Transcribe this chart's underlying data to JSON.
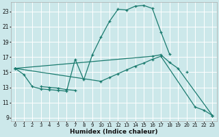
{
  "xlabel": "Humidex (Indice chaleur)",
  "bg_color": "#cce8ea",
  "grid_color": "#ffffff",
  "line_color": "#1a7a6e",
  "xlim": [
    -0.5,
    23.5
  ],
  "ylim": [
    8.5,
    24.2
  ],
  "xticks": [
    0,
    1,
    2,
    3,
    4,
    5,
    6,
    7,
    8,
    9,
    10,
    11,
    12,
    13,
    14,
    15,
    16,
    17,
    18,
    19,
    20,
    21,
    22,
    23
  ],
  "yticks": [
    9,
    11,
    13,
    15,
    17,
    19,
    21,
    23
  ],
  "lines": [
    {
      "segments": [
        {
          "x": [
            0,
            1,
            2,
            3,
            4,
            5,
            6,
            7,
            8,
            9,
            10,
            11,
            12,
            13,
            14,
            15,
            16,
            17,
            18
          ],
          "y": [
            15.5,
            14.7,
            13.1,
            12.8,
            12.7,
            12.6,
            12.5,
            16.7,
            14.0,
            17.3,
            19.6,
            21.7,
            23.3,
            23.2,
            23.7,
            23.8,
            23.4,
            20.3,
            17.4
          ]
        }
      ]
    },
    {
      "segments": [
        {
          "x": [
            0,
            1,
            2,
            3,
            4,
            5,
            6,
            7,
            8,
            9,
            10,
            11,
            12,
            13,
            14,
            15,
            16,
            17,
            18,
            19,
            20,
            21,
            22,
            23
          ],
          "y": [
            15.5,
            null,
            null,
            13.1,
            13.0,
            12.9,
            12.7,
            12.6,
            null,
            null,
            null,
            null,
            null,
            null,
            null,
            null,
            null,
            null,
            null,
            null,
            15.0,
            null,
            null,
            9.3
          ]
        }
      ]
    },
    {
      "segments": [
        {
          "x": [
            0,
            16,
            17,
            18,
            19,
            23
          ],
          "y": [
            15.5,
            17.1,
            17.3,
            16.3,
            15.5,
            9.3
          ]
        }
      ]
    },
    {
      "segments": [
        {
          "x": [
            0,
            10,
            11,
            12,
            13,
            14,
            15,
            16,
            17,
            21,
            22,
            23
          ],
          "y": [
            15.5,
            13.8,
            14.3,
            14.8,
            15.3,
            15.8,
            16.2,
            16.7,
            17.1,
            10.4,
            10.0,
            9.3
          ]
        }
      ]
    }
  ]
}
